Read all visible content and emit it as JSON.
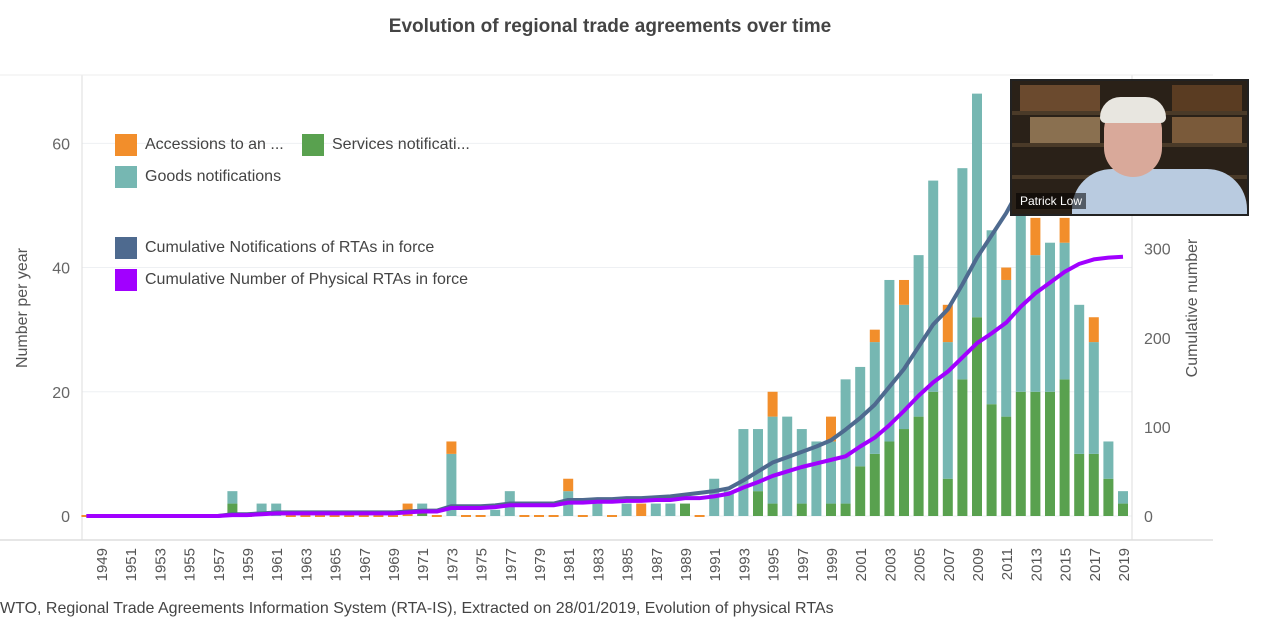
{
  "chart_data": {
    "type": "bar",
    "title": "Evolution of regional trade agreements over time",
    "ylabel": "Number per year",
    "y2label": "Cumulative number",
    "ylim": [
      0,
      71
    ],
    "y2lim": [
      0,
      495
    ],
    "yticks": [
      0,
      20,
      40,
      60
    ],
    "y2ticks": [
      0,
      100,
      200,
      300
    ],
    "grid": true,
    "legend_placement": "top-left",
    "x_start": 1948,
    "x_end": 2019,
    "xtick_labels": [
      "1949",
      "1951",
      "1953",
      "1955",
      "1957",
      "1959",
      "1961",
      "1963",
      "1965",
      "1967",
      "1969",
      "1971",
      "1973",
      "1975",
      "1977",
      "1979",
      "1981",
      "1983",
      "1985",
      "1987",
      "1989",
      "1991",
      "1993",
      "1995",
      "1997",
      "1999",
      "2001",
      "2003",
      "2005",
      "2007",
      "2009",
      "2011",
      "2013",
      "2015",
      "2017",
      "2019"
    ],
    "bar_series": [
      {
        "name": "Accessions to an ...",
        "color": "#f28e2b",
        "values": [
          0,
          0,
          0,
          0,
          0,
          0,
          0,
          0,
          0,
          0,
          0,
          0,
          0,
          0,
          0,
          0,
          0,
          0,
          0,
          0,
          0,
          0,
          2,
          0,
          0,
          2,
          0,
          0,
          0,
          0,
          0,
          0,
          0,
          2,
          0,
          0,
          0,
          0,
          2,
          0,
          0,
          0,
          0,
          0,
          0,
          0,
          0,
          4,
          0,
          0,
          0,
          4,
          0,
          0,
          2,
          0,
          4,
          0,
          0,
          6,
          0,
          0,
          0,
          2,
          0,
          6,
          0,
          4,
          0,
          4,
          0,
          0
        ]
      },
      {
        "name": "Services notificati...",
        "color": "#59a14f",
        "values": [
          0,
          0,
          0,
          0,
          0,
          0,
          0,
          0,
          0,
          0,
          2,
          0,
          0,
          0,
          0,
          0,
          0,
          0,
          0,
          0,
          0,
          0,
          0,
          1,
          0,
          0,
          0,
          0,
          0,
          0,
          0,
          0,
          0,
          0,
          0,
          0,
          0,
          0,
          0,
          0,
          0,
          2,
          0,
          0,
          0,
          0,
          4,
          2,
          0,
          2,
          0,
          2,
          2,
          8,
          10,
          12,
          14,
          16,
          20,
          6,
          22,
          32,
          18,
          16,
          20,
          20,
          20,
          22,
          10,
          10,
          6,
          2
        ]
      },
      {
        "name": "Goods notifications",
        "color": "#76b7b2",
        "values": [
          0,
          0,
          0,
          0,
          0,
          0,
          0,
          0,
          0,
          0,
          2,
          0,
          2,
          2,
          0,
          0,
          0,
          0,
          0,
          0,
          0,
          0,
          0,
          1,
          0,
          10,
          0,
          0,
          1,
          4,
          0,
          0,
          0,
          4,
          0,
          2,
          0,
          2,
          0,
          2,
          2,
          0,
          0,
          6,
          4,
          14,
          10,
          14,
          16,
          12,
          12,
          10,
          20,
          16,
          18,
          26,
          20,
          26,
          34,
          22,
          34,
          36,
          28,
          22,
          30,
          22,
          24,
          22,
          24,
          18,
          6,
          2
        ]
      }
    ],
    "line_series": [
      {
        "name": "Cumulative Notifications of RTAs in force",
        "color": "#4e6a8f",
        "values": [
          0,
          0,
          0,
          0,
          0,
          0,
          0,
          0,
          0,
          0,
          2,
          2,
          3,
          4,
          4,
          4,
          4,
          4,
          4,
          4,
          4,
          4,
          5,
          6,
          6,
          11,
          11,
          11,
          12,
          14,
          14,
          14,
          14,
          18,
          18,
          19,
          19,
          20,
          20,
          21,
          22,
          24,
          26,
          28,
          31,
          40,
          50,
          60,
          66,
          72,
          78,
          85,
          97,
          110,
          125,
          145,
          165,
          190,
          215,
          232,
          260,
          290,
          315,
          340,
          370,
          395,
          420,
          440,
          455,
          465,
          470,
          472
        ]
      },
      {
        "name": "Cumulative Number of Physical RTAs in force",
        "color": "#a100ff",
        "values": [
          0,
          0,
          0,
          0,
          0,
          0,
          0,
          0,
          0,
          0,
          1,
          1,
          2,
          3,
          3,
          3,
          3,
          3,
          3,
          3,
          3,
          3,
          4,
          5,
          5,
          9,
          9,
          9,
          10,
          12,
          12,
          12,
          12,
          15,
          15,
          16,
          16,
          17,
          17,
          18,
          18,
          20,
          20,
          22,
          25,
          32,
          38,
          45,
          50,
          55,
          59,
          63,
          67,
          78,
          88,
          102,
          118,
          135,
          150,
          162,
          178,
          194,
          205,
          217,
          235,
          250,
          262,
          274,
          283,
          288,
          290,
          291
        ]
      }
    ]
  },
  "source": "WTO, Regional Trade Agreements Information System (RTA-IS), Extracted on 28/01/2019, Evolution of physical RTAs",
  "video": {
    "participant_name": "Patrick Low"
  }
}
